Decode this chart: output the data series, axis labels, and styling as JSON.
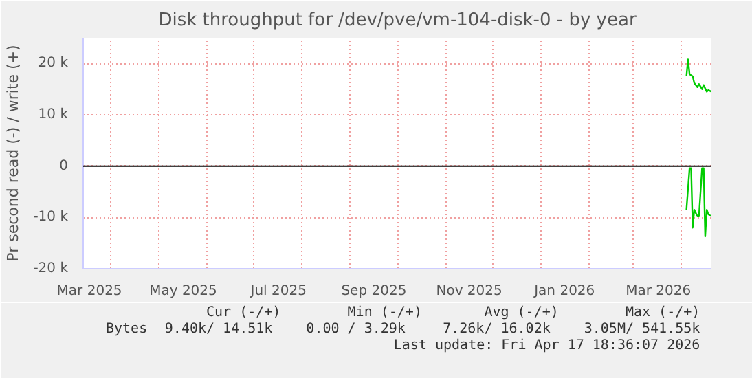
{
  "chart_data": {
    "type": "line",
    "title": "Disk throughput for /dev/pve/vm-104-disk-0 - by year",
    "ylabel": "Pr second read (-) / write (+)",
    "xlim": [
      "2025-03-14",
      "2026-04-20"
    ],
    "ylim": [
      -20000,
      25000
    ],
    "xticks": [
      {
        "value": "2025-03-18",
        "label": "Mar 2025"
      },
      {
        "value": "2025-05-17",
        "label": "May 2025"
      },
      {
        "value": "2025-07-17",
        "label": "Jul 2025"
      },
      {
        "value": "2025-09-16",
        "label": "Sep 2025"
      },
      {
        "value": "2025-11-16",
        "label": "Nov 2025"
      },
      {
        "value": "2026-01-16",
        "label": "Jan 2026"
      },
      {
        "value": "2026-03-17",
        "label": "Mar 2026"
      },
      {
        "value": "2025-04-01",
        "label": null
      },
      {
        "value": "2025-05-01",
        "label": null
      },
      {
        "value": "2025-06-01",
        "label": null
      },
      {
        "value": "2025-07-01",
        "label": null
      },
      {
        "value": "2025-08-01",
        "label": null
      },
      {
        "value": "2025-09-01",
        "label": null
      },
      {
        "value": "2025-10-01",
        "label": null
      },
      {
        "value": "2025-11-01",
        "label": null
      },
      {
        "value": "2025-12-01",
        "label": null
      },
      {
        "value": "2026-01-01",
        "label": null
      },
      {
        "value": "2026-02-01",
        "label": null
      },
      {
        "value": "2026-03-01",
        "label": null
      },
      {
        "value": "2026-04-01",
        "label": null
      }
    ],
    "yticks": [
      {
        "value": -20000,
        "label": "-20 k"
      },
      {
        "value": -10000,
        "label": "-10 k"
      },
      0,
      {
        "value": 10000,
        "label": "10 k"
      },
      {
        "value": 20000,
        "label": "20 k"
      }
    ],
    "grid": true,
    "legend": "bottom left",
    "ref_lines": [
      {
        "axis": "y",
        "value": 0,
        "color": "#000000"
      }
    ],
    "series": [
      {
        "name": "Bytes",
        "color": "#00cc00",
        "x": [
          "2026-04-04",
          "2026-04-05",
          "2026-04-06",
          "2026-04-08",
          "2026-04-09",
          "2026-04-11",
          "2026-04-12",
          "2026-04-14",
          "2026-04-15",
          "2026-04-17",
          "2026-04-18",
          "2026-04-20"
        ],
        "values": [
          17500,
          20800,
          17900,
          17500,
          16200,
          15400,
          16000,
          15000,
          15800,
          14500,
          14800,
          14500
        ]
      },
      {
        "color": "#00cc00",
        "x": [
          "2026-04-04",
          "2026-04-06",
          "2026-04-07",
          "2026-04-08",
          "2026-04-09",
          "2026-04-11",
          "2026-04-12",
          "2026-04-14",
          "2026-04-15",
          "2026-04-16",
          "2026-04-17",
          "2026-04-18",
          "2026-04-20"
        ],
        "values": [
          -8500,
          -400,
          -400,
          -12000,
          -8500,
          -9800,
          -9800,
          -400,
          -400,
          -13700,
          -8500,
          -9400,
          -9800
        ]
      }
    ],
    "annotations": [
      "Cur (-/+)",
      "9.40k/  14.51k",
      "Min (-/+)",
      "0.00 /   3.29k",
      "Avg (-/+)",
      "7.26k/  16.02k",
      "Max (-/+)",
      "3.05M/ 541.55k",
      "Last update: Fri Apr 17 18:36:07 2026"
    ]
  }
}
